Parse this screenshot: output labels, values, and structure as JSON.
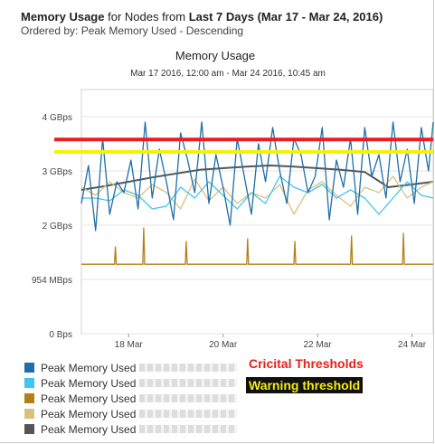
{
  "header": {
    "title_bold": "Memory Usage",
    "title_for": "for Nodes from",
    "title_range_bold": "Last 7 Days (Mar 17 - Mar 24, 2016)",
    "ordered_by": "Ordered by: Peak Memory Used - Descending"
  },
  "annotations": {
    "critical": "Cricital Thresholds",
    "warning": "Warning threshold"
  },
  "chart_data": {
    "type": "line",
    "title": "Memory Usage",
    "subtitle": "Mar 17 2016, 12:00 am - Mar 24 2016, 10:45 am",
    "xlabel": "",
    "ylabel": "",
    "x_range_days": [
      17.0,
      24.45
    ],
    "y_range_gb": [
      0,
      4.5
    ],
    "x_ticks": [
      {
        "label": "18 Mar",
        "v": 18
      },
      {
        "label": "20 Mar",
        "v": 20
      },
      {
        "label": "22 Mar",
        "v": 22
      },
      {
        "label": "24 Mar",
        "v": 24
      }
    ],
    "y_ticks": [
      {
        "label": "0 Bps",
        "v": 0
      },
      {
        "label": "954 MBps",
        "v": 1
      },
      {
        "label": "2 GBps",
        "v": 2
      },
      {
        "label": "3 GBps",
        "v": 3
      },
      {
        "label": "4 GBps",
        "v": 4
      }
    ],
    "thresholds": [
      {
        "name": "critical",
        "value": 3.58,
        "color": "#ee1b24"
      },
      {
        "name": "warning",
        "value": 3.35,
        "color": "#f5f20a"
      }
    ],
    "series": [
      {
        "name": "Peak Memory Used",
        "color": "#1f6ea8",
        "x": [
          17.0,
          17.15,
          17.3,
          17.45,
          17.6,
          17.75,
          17.9,
          18.05,
          18.2,
          18.35,
          18.5,
          18.65,
          18.8,
          18.95,
          19.1,
          19.25,
          19.4,
          19.55,
          19.7,
          19.85,
          20.0,
          20.15,
          20.3,
          20.45,
          20.6,
          20.75,
          20.9,
          21.05,
          21.2,
          21.35,
          21.5,
          21.65,
          21.8,
          21.95,
          22.1,
          22.25,
          22.4,
          22.55,
          22.7,
          22.85,
          23.0,
          23.15,
          23.3,
          23.45,
          23.6,
          23.75,
          23.9,
          24.05,
          24.2,
          24.35,
          24.45
        ],
        "y": [
          2.4,
          3.1,
          1.9,
          3.6,
          2.2,
          2.8,
          2.6,
          3.2,
          2.3,
          3.9,
          2.5,
          3.4,
          2.8,
          2.1,
          3.7,
          3.2,
          2.6,
          3.9,
          2.4,
          3.3,
          2.7,
          2.0,
          3.6,
          2.9,
          2.2,
          3.5,
          2.8,
          3.8,
          3.0,
          2.4,
          3.6,
          3.3,
          2.6,
          2.9,
          3.8,
          2.1,
          3.2,
          2.7,
          3.6,
          2.2,
          3.8,
          2.9,
          3.3,
          2.5,
          3.9,
          2.8,
          3.4,
          2.4,
          3.8,
          3.0,
          3.9
        ]
      },
      {
        "name": "Peak Memory Used",
        "color": "#41c5ee",
        "x": [
          17.0,
          17.3,
          17.6,
          17.9,
          18.2,
          18.5,
          18.8,
          19.1,
          19.4,
          19.7,
          20.0,
          20.3,
          20.6,
          20.9,
          21.2,
          21.5,
          21.8,
          22.1,
          22.4,
          22.7,
          23.0,
          23.3,
          23.6,
          23.9,
          24.2,
          24.45
        ],
        "y": [
          2.5,
          2.5,
          2.45,
          2.65,
          2.55,
          2.3,
          2.35,
          2.7,
          2.5,
          2.8,
          2.55,
          2.3,
          2.6,
          2.4,
          2.9,
          2.7,
          2.6,
          2.75,
          2.5,
          2.65,
          2.5,
          2.2,
          2.5,
          2.8,
          2.55,
          2.5
        ]
      },
      {
        "name": "Peak Memory Used",
        "color": "#b57f17",
        "x": [
          17.0,
          17.7,
          17.72,
          17.74,
          18.0,
          18.3,
          18.32,
          18.34,
          19.2,
          19.22,
          19.24,
          19.6,
          20.5,
          20.52,
          20.54,
          21.5,
          21.52,
          21.54,
          22.7,
          22.72,
          22.74,
          23.8,
          23.82,
          23.84,
          24.45
        ],
        "y": [
          1.28,
          1.28,
          1.6,
          1.28,
          1.28,
          1.28,
          1.95,
          1.28,
          1.28,
          1.7,
          1.28,
          1.28,
          1.28,
          1.75,
          1.28,
          1.28,
          1.7,
          1.28,
          1.28,
          1.8,
          1.28,
          1.28,
          1.85,
          1.28,
          1.28
        ]
      },
      {
        "name": "Peak Memory Used",
        "color": "#d9c27d",
        "x": [
          17.0,
          17.3,
          17.6,
          17.9,
          18.2,
          18.5,
          18.8,
          19.1,
          19.4,
          19.7,
          20.0,
          20.3,
          20.6,
          20.9,
          21.2,
          21.5,
          21.8,
          22.1,
          22.4,
          22.7,
          23.0,
          23.3,
          23.6,
          23.9,
          24.2,
          24.45
        ],
        "y": [
          2.7,
          2.55,
          2.8,
          2.6,
          2.5,
          2.75,
          2.6,
          2.3,
          2.85,
          2.45,
          2.7,
          2.4,
          2.6,
          2.5,
          2.75,
          2.2,
          2.65,
          2.8,
          2.55,
          2.35,
          2.7,
          2.6,
          2.9,
          2.5,
          2.7,
          2.8
        ]
      },
      {
        "name": "Peak Memory Used",
        "color": "#555555",
        "x": [
          17.0,
          17.5,
          18.0,
          18.5,
          19.0,
          19.5,
          20.0,
          20.5,
          21.0,
          21.5,
          22.0,
          22.5,
          23.0,
          23.5,
          24.0,
          24.45
        ],
        "y": [
          2.65,
          2.72,
          2.8,
          2.88,
          2.95,
          3.02,
          3.05,
          3.08,
          3.1,
          3.08,
          3.05,
          3.02,
          2.98,
          2.7,
          2.75,
          2.8
        ]
      }
    ]
  }
}
